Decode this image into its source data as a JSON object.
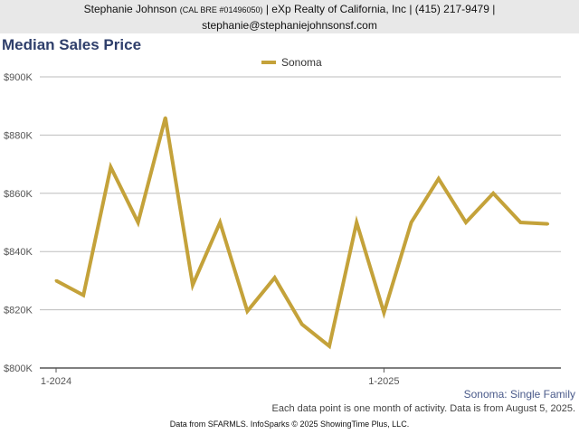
{
  "header": {
    "name": "Stephanie Johnson",
    "license": "(CAL BRE #01496050)",
    "company": "| eXp Realty of California, Inc | (415) 217-9479 |",
    "email": "stephanie@stephaniejohnsonsf.com"
  },
  "footer": {
    "note": "Each data point is one month of activity. Data is from August 5, 2025.",
    "source": "Data from SFARMLS. InfoSparks © 2025 ShowingTime Plus, LLC."
  },
  "chart_data": {
    "type": "line",
    "title": "Median Sales Price",
    "subtitle": "Sonoma: Single Family",
    "ylim": [
      800000,
      900000
    ],
    "y_ticks": [
      {
        "value": 800000,
        "label": "$800K"
      },
      {
        "value": 820000,
        "label": "$820K"
      },
      {
        "value": 840000,
        "label": "$840K"
      },
      {
        "value": 860000,
        "label": "$860K"
      },
      {
        "value": 880000,
        "label": "$880K"
      },
      {
        "value": 900000,
        "label": "$900K"
      }
    ],
    "x_ticks": [
      {
        "value": "2024-01",
        "label": "1-2024"
      },
      {
        "value": "2025-01",
        "label": "1-2025"
      }
    ],
    "x": [
      "2024-01",
      "2024-02",
      "2024-03",
      "2024-04",
      "2024-05",
      "2024-06",
      "2024-07",
      "2024-08",
      "2024-09",
      "2024-10",
      "2024-11",
      "2024-12",
      "2025-01",
      "2025-02",
      "2025-03",
      "2025-04",
      "2025-05",
      "2025-06",
      "2025-07"
    ],
    "series": [
      {
        "name": "Sonoma",
        "color": "#c4a23a",
        "values": [
          830000,
          825000,
          869000,
          850000,
          886000,
          828500,
          850000,
          819500,
          831000,
          815000,
          807500,
          850000,
          819000,
          850000,
          865000,
          850000,
          860000,
          850000,
          849500
        ]
      }
    ],
    "grid": true,
    "legend_position": "top-center"
  }
}
